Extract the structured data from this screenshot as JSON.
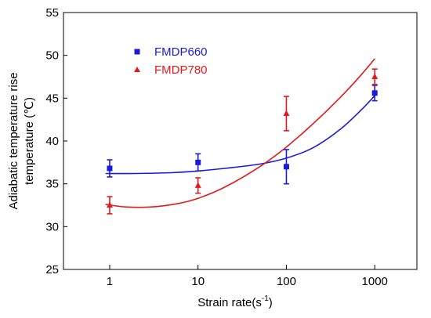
{
  "chart_data": {
    "type": "scatter",
    "x_scale": "log",
    "xlim": [
      0.3,
      3000
    ],
    "ylim": [
      25,
      55
    ],
    "x_ticks": [
      1,
      10,
      100,
      1000
    ],
    "x_tick_labels": [
      "1",
      "10",
      "100",
      "1000"
    ],
    "y_ticks": [
      25,
      30,
      35,
      40,
      45,
      50,
      55
    ],
    "y_tick_labels": [
      "25",
      "30",
      "35",
      "40",
      "45",
      "50",
      "55"
    ],
    "xlabel_main": "Strain rate(s",
    "xlabel_sup": "-1",
    "xlabel_close": ")",
    "ylabel_line1": "Adiabatic temperature rise",
    "ylabel_line2": "temperature (℃)",
    "legend_position": "top-left",
    "series": [
      {
        "name": "FMDP660",
        "color": "#1a1adc",
        "marker": "square",
        "x": [
          1,
          10,
          100,
          1000
        ],
        "y": [
          36.8,
          37.5,
          37.0,
          45.6
        ],
        "err": [
          1.0,
          1.0,
          2.0,
          0.9
        ],
        "fit": [
          [
            0.9,
            36.2
          ],
          [
            2,
            36.2
          ],
          [
            5,
            36.3
          ],
          [
            10,
            36.5
          ],
          [
            20,
            36.8
          ],
          [
            50,
            37.3
          ],
          [
            100,
            38.0
          ],
          [
            200,
            39.2
          ],
          [
            400,
            41.3
          ],
          [
            700,
            43.6
          ],
          [
            1000,
            45.3
          ]
        ]
      },
      {
        "name": "FMDP780",
        "color": "#e31a1a",
        "marker": "triangle",
        "x": [
          1,
          10,
          100,
          1000
        ],
        "y": [
          32.5,
          34.8,
          43.2,
          47.5
        ],
        "err": [
          1.0,
          0.9,
          2.0,
          0.9
        ],
        "fit": [
          [
            0.9,
            32.6
          ],
          [
            1.5,
            32.3
          ],
          [
            3,
            32.3
          ],
          [
            6,
            32.7
          ],
          [
            10,
            33.3
          ],
          [
            20,
            34.6
          ],
          [
            50,
            37.0
          ],
          [
            100,
            39.3
          ],
          [
            200,
            42.0
          ],
          [
            400,
            45.0
          ],
          [
            700,
            47.7
          ],
          [
            1000,
            49.6
          ]
        ]
      }
    ]
  }
}
